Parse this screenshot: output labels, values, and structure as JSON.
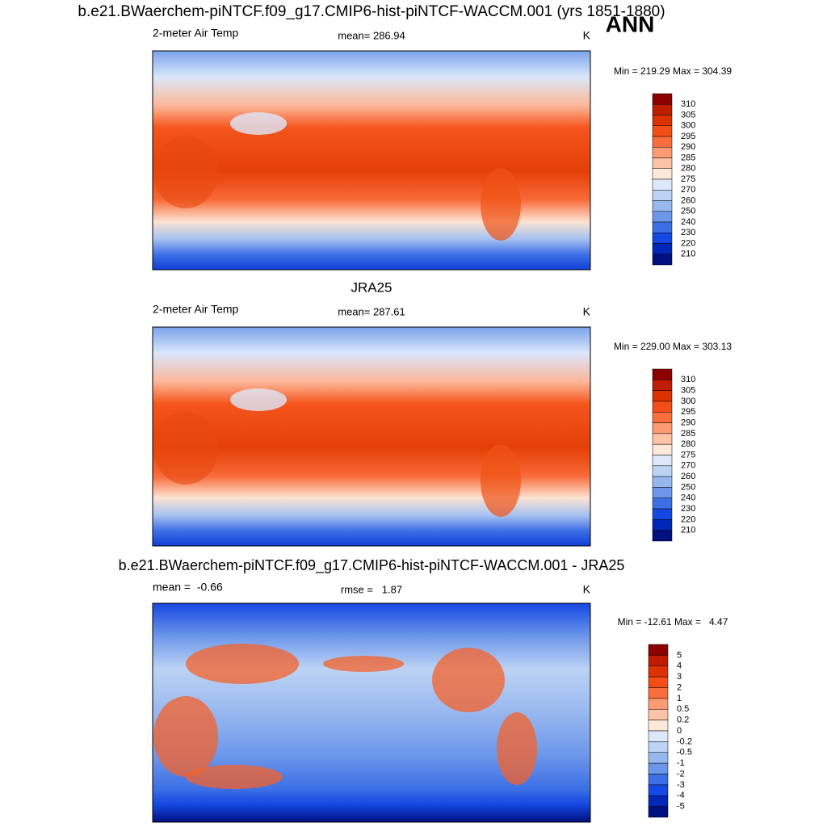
{
  "title": "b.e21.BWaerchem-piNTCF.f09_g17.CMIP6-hist-piNTCF-WACCM.001 (yrs 1851-1880)",
  "season": "ANN",
  "panels": [
    {
      "left_label": "2-meter Air Temp",
      "center_label": "mean= 286.94",
      "units": "K",
      "minmax": "Min = 219.29 Max = 304.39",
      "colorbar": {
        "labels": [
          "310",
          "305",
          "300",
          "295",
          "290",
          "285",
          "280",
          "275",
          "270",
          "260",
          "250",
          "240",
          "230",
          "220",
          "210"
        ],
        "colors": [
          "#8c0000",
          "#bf1c00",
          "#db3200",
          "#f34e17",
          "#fa6e3e",
          "#fc9a72",
          "#fdc3a6",
          "#fde8da",
          "#dde9fb",
          "#bdd3f5",
          "#97b8ef",
          "#6b96e9",
          "#3c6ee5",
          "#1547e2",
          "#0027b8",
          "#00107f"
        ]
      }
    },
    {
      "title": "JRA25",
      "left_label": "2-meter Air Temp",
      "center_label": "mean= 287.61",
      "units": "K",
      "minmax": "Min = 229.00 Max = 303.13",
      "colorbar": {
        "labels": [
          "310",
          "305",
          "300",
          "295",
          "290",
          "285",
          "280",
          "275",
          "270",
          "260",
          "250",
          "240",
          "230",
          "220",
          "210"
        ],
        "colors": [
          "#8c0000",
          "#bf1c00",
          "#db3200",
          "#f34e17",
          "#fa6e3e",
          "#fc9a72",
          "#fdc3a6",
          "#fde8da",
          "#dde9fb",
          "#bdd3f5",
          "#97b8ef",
          "#6b96e9",
          "#3c6ee5",
          "#1547e2",
          "#0027b8",
          "#00107f"
        ]
      }
    },
    {
      "title": "b.e21.BWaerchem-piNTCF.f09_g17.CMIP6-hist-piNTCF-WACCM.001 - JRA25",
      "left_label": "mean =  -0.66",
      "center_label": "rmse =   1.87",
      "units": "K",
      "minmax": "Min = -12.61 Max =   4.47",
      "colorbar": {
        "labels": [
          "5",
          "4",
          "3",
          "2",
          "1",
          "0.5",
          "0.2",
          "0",
          "-0.2",
          "-0.5",
          "-1",
          "-2",
          "-3",
          "-4",
          "-5"
        ],
        "colors": [
          "#8c0000",
          "#bf1c00",
          "#db3200",
          "#f34e17",
          "#fa6e3e",
          "#fc9a72",
          "#fdc3a6",
          "#fde8da",
          "#dde9fb",
          "#bdd3f5",
          "#97b8ef",
          "#6b96e9",
          "#3c6ee5",
          "#1547e2",
          "#0027b8",
          "#00107f"
        ]
      }
    }
  ]
}
